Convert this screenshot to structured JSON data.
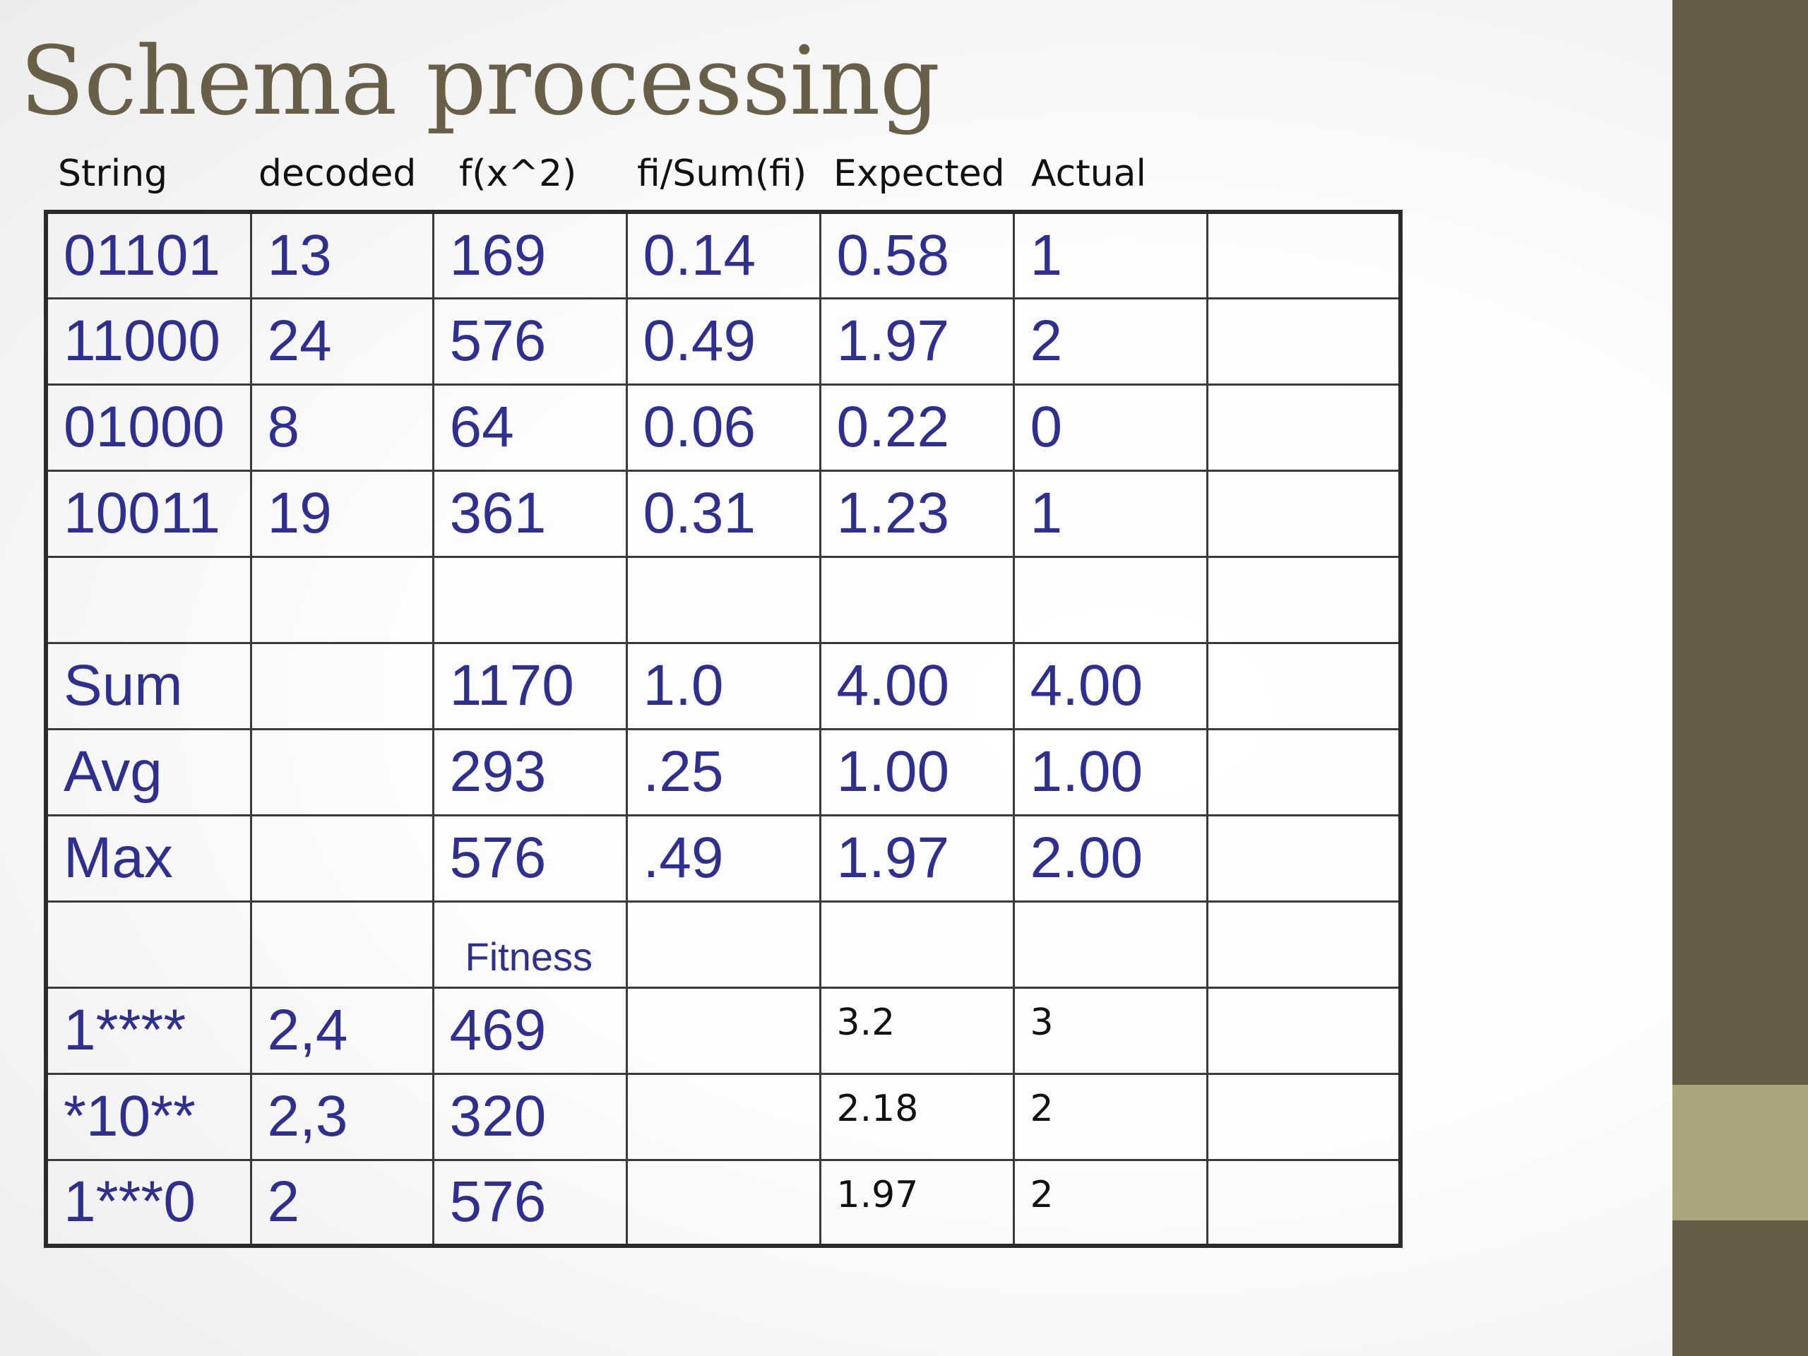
{
  "slide": {
    "title": "Schema processing"
  },
  "colors": {
    "title": "#685f48",
    "table_text": "#2e2f8e",
    "side_bar": "#675c47",
    "side_accent": "#a9a57b"
  },
  "table": {
    "headers": [
      "String",
      "decoded",
      "f(x^2)",
      "fi/Sum(fi)",
      "Expected",
      "Actual"
    ],
    "rows": [
      [
        "01101",
        "13",
        "169",
        "0.14",
        "0.58",
        "1",
        ""
      ],
      [
        "11000",
        "24",
        "576",
        "0.49",
        "1.97",
        "2",
        ""
      ],
      [
        "01000",
        "8",
        "64",
        "0.06",
        "0.22",
        "0",
        ""
      ],
      [
        "10011",
        "19",
        "361",
        "0.31",
        "1.23",
        "1",
        ""
      ],
      [
        "",
        "",
        "",
        "",
        "",
        "",
        ""
      ],
      [
        "Sum",
        "",
        "1170",
        "1.0",
        "4.00",
        "4.00",
        ""
      ],
      [
        "Avg",
        "",
        "293",
        ".25",
        "1.00",
        "1.00",
        ""
      ],
      [
        "Max",
        "",
        "576",
        ".49",
        "1.97",
        "2.00",
        ""
      ],
      [
        "",
        "",
        "Fitness",
        "",
        "",
        "",
        ""
      ],
      [
        "1****",
        "2,4",
        "469",
        "",
        "3.2",
        "3",
        ""
      ],
      [
        "*10**",
        "2,3",
        "320",
        "",
        "2.18",
        "2",
        ""
      ],
      [
        "1***0",
        "2",
        "576",
        "",
        "1.97",
        "2",
        ""
      ]
    ]
  }
}
